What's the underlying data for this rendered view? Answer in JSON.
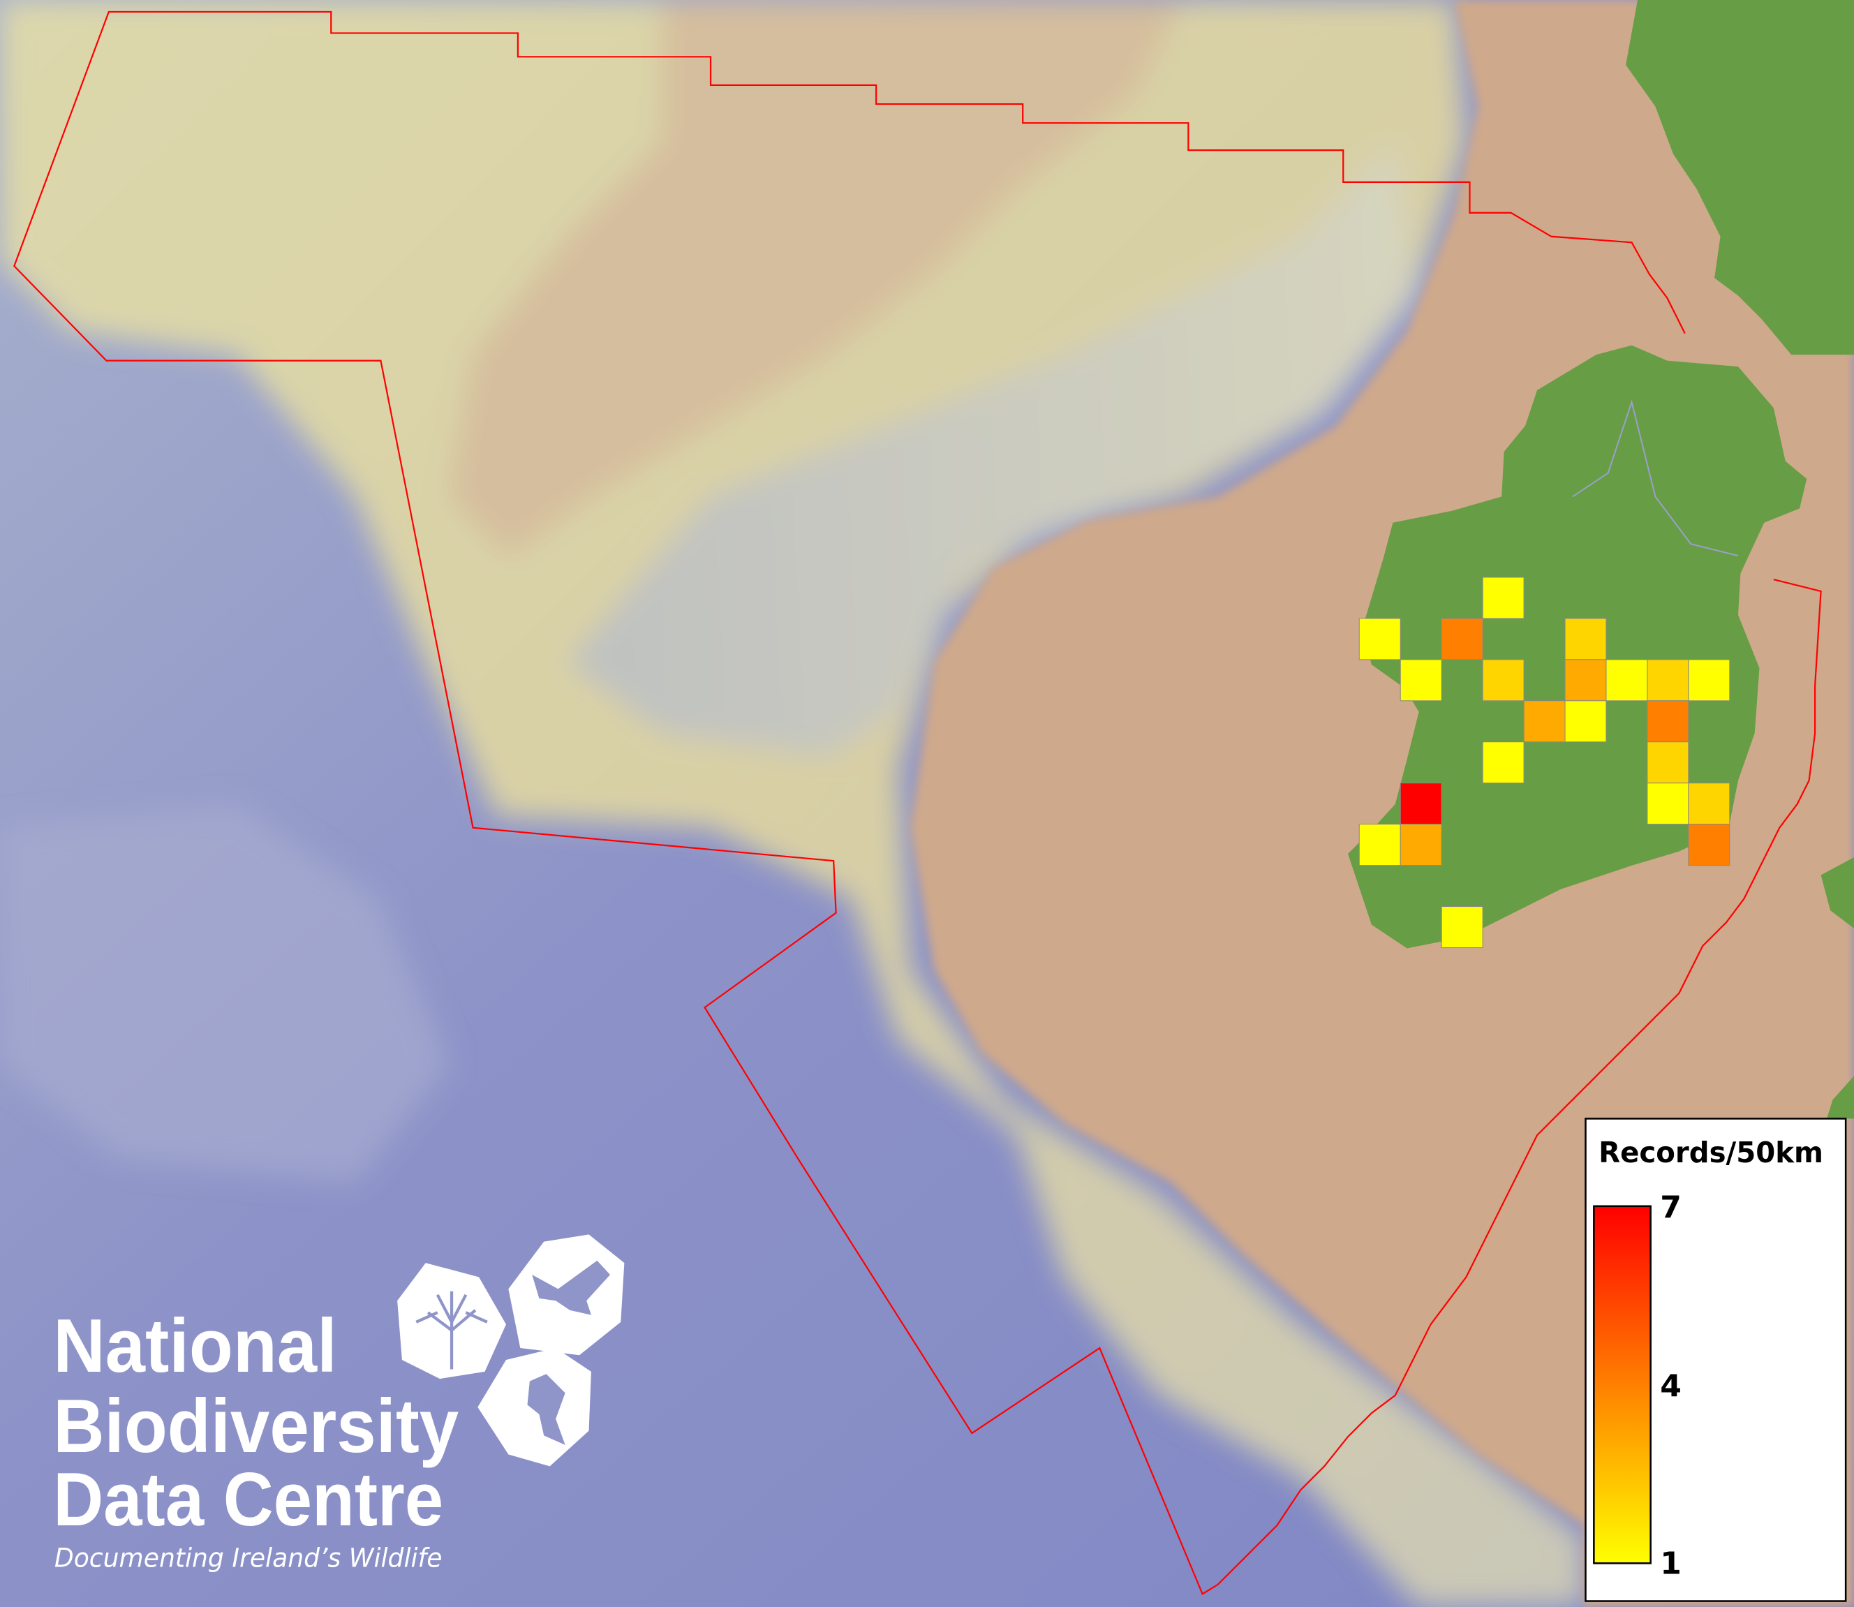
{
  "map": {
    "colors": {
      "ocean_deep": "#8a90c8",
      "shelf": "#d9d4aa",
      "land_mask": "#cfaa8c",
      "land_green": "#679d45",
      "boundary": "#ff0000",
      "grid_outline": "#888888"
    }
  },
  "chart_data": {
    "type": "heatmap",
    "description_unit": "Records/50km",
    "grid_values": [
      [
        null,
        null,
        null,
        1,
        null,
        null,
        null,
        null,
        null
      ],
      [
        1,
        null,
        4,
        null,
        null,
        2,
        null,
        null,
        null
      ],
      [
        null,
        1,
        null,
        2,
        null,
        3,
        1,
        2,
        1
      ],
      [
        null,
        null,
        null,
        null,
        3,
        1,
        null,
        4,
        null
      ],
      [
        null,
        null,
        null,
        1,
        null,
        null,
        null,
        2,
        null
      ],
      [
        null,
        7,
        null,
        null,
        null,
        null,
        null,
        1,
        2
      ],
      [
        1,
        3,
        null,
        null,
        null,
        null,
        null,
        null,
        4
      ],
      [
        null,
        null,
        null,
        null,
        null,
        null,
        null,
        null,
        null
      ],
      [
        null,
        null,
        1,
        null,
        null,
        null,
        null,
        null,
        null
      ]
    ],
    "colorscale": {
      "min": 1,
      "max": 7,
      "min_color": "#ffff00",
      "max_color": "#ff0000"
    }
  },
  "legend": {
    "title": "Records/50km",
    "max_label": "7",
    "mid_label": "4",
    "min_label": "1"
  },
  "logo": {
    "line1": "National",
    "line2": "Biodiversity",
    "line3": "Data Centre",
    "tagline": "Documenting Ireland’s Wildlife",
    "icons": [
      "tree-icon",
      "butterfly-icon",
      "seahorse-icon"
    ]
  }
}
